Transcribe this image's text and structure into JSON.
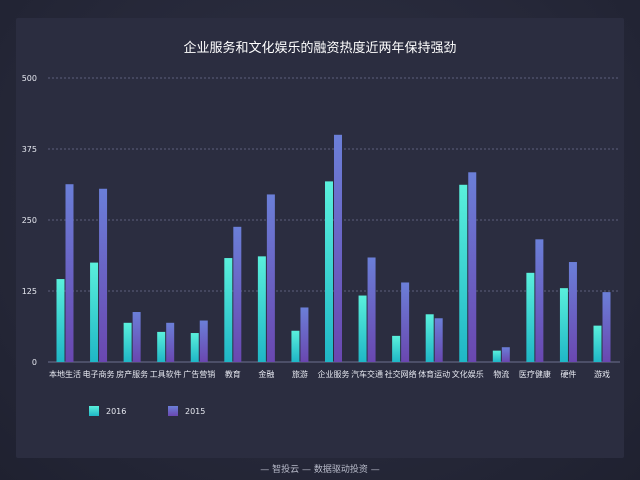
{
  "colors": {
    "series_2016_top": "#5af0dc",
    "series_2016_bottom": "#1fb6c6",
    "series_2015_top": "#6b7fd8",
    "series_2015_bottom": "#6a47b0",
    "grid": "#6d7190",
    "text": "#e6e8f0"
  },
  "footer": "—  智投云 — 数据驱动投资  —",
  "chart_data": {
    "type": "bar",
    "title": "企业服务和文化娱乐的融资热度近两年保持强劲",
    "xlabel": "",
    "ylabel": "",
    "ylim": [
      0,
      500
    ],
    "yticks": [
      "0",
      "125",
      "250",
      "375",
      "500"
    ],
    "grid": "horizontal dashed",
    "legend_position": "bottom-left",
    "categories": [
      "本地生活",
      "电子商务",
      "房产服务",
      "工具软件",
      "广告营销",
      "教育",
      "金融",
      "旅游",
      "企业服务",
      "汽车交通",
      "社交网络",
      "体育运动",
      "文化娱乐",
      "物流",
      "医疗健康",
      "硬件",
      "游戏"
    ],
    "series": [
      {
        "name": "2016",
        "values": [
          146,
          175,
          69,
          53,
          51,
          183,
          186,
          55,
          318,
          117,
          46,
          84,
          312,
          20,
          157,
          130,
          64
        ]
      },
      {
        "name": "2015",
        "values": [
          313,
          305,
          88,
          69,
          73,
          238,
          295,
          96,
          400,
          184,
          140,
          77,
          334,
          26,
          216,
          176,
          123
        ]
      }
    ]
  }
}
